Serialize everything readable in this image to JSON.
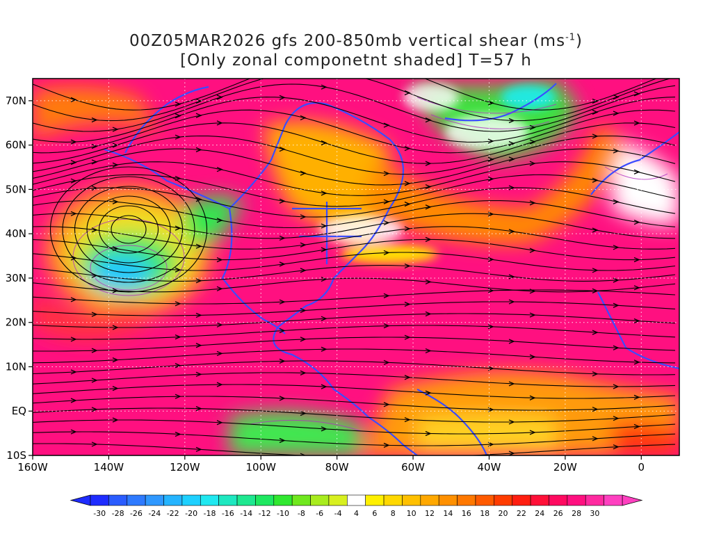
{
  "title": {
    "line1": "00Z05MAR2026 gfs 200-850mb vertical shear (ms",
    "line1_sup": "-1",
    "line1_end": ")",
    "line2": "[Only zonal componetnt shaded] T=57 h"
  },
  "map": {
    "lon_ticks": [
      "160W",
      "140W",
      "120W",
      "100W",
      "80W",
      "60W",
      "40W",
      "20W",
      "0"
    ],
    "lat_ticks": [
      "70N",
      "60N",
      "50N",
      "40N",
      "30N",
      "20N",
      "10N",
      "EQ",
      "10S"
    ],
    "lon_range": [
      -160,
      10
    ],
    "lat_range": [
      -10,
      75
    ]
  },
  "colorbar": {
    "labels": [
      "-30",
      "-28",
      "-26",
      "-24",
      "-22",
      "-20",
      "-18",
      "-16",
      "-14",
      "-12",
      "-10",
      "-8",
      "-6",
      "-4",
      "4",
      "6",
      "8",
      "10",
      "12",
      "14",
      "16",
      "18",
      "20",
      "22",
      "24",
      "26",
      "28",
      "30"
    ],
    "colors": [
      "#1e2cff",
      "#2a5cff",
      "#2e7aff",
      "#2f98ff",
      "#25b4ff",
      "#1ed0ff",
      "#20e8f0",
      "#1ee8c0",
      "#1ee890",
      "#1ee860",
      "#30e830",
      "#70e81e",
      "#a8ec1e",
      "#d8f020",
      "#ffffff",
      "#fff000",
      "#ffd800",
      "#ffc000",
      "#ffa800",
      "#ff9000",
      "#ff7800",
      "#ff5a00",
      "#ff3c00",
      "#ff1e10",
      "#ff1038",
      "#ff0a60",
      "#ff1080",
      "#ff2aa0",
      "#ff40c0"
    ]
  },
  "colors": {
    "coast": "#3a4cff",
    "contour": "#b030c0",
    "streamline": "#000000",
    "grid": "#ffffff"
  }
}
